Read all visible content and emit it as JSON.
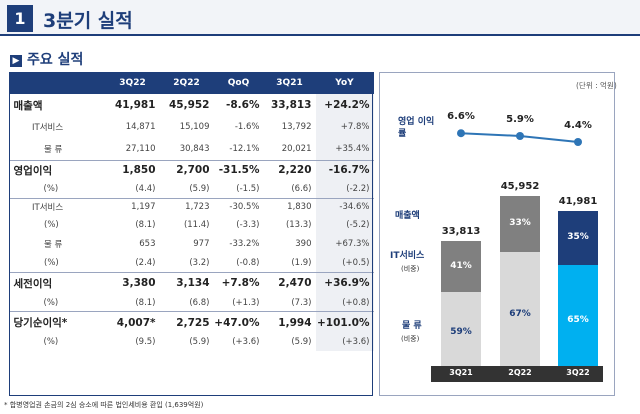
{
  "header": {
    "number": "1",
    "title": "3분기 실적"
  },
  "section": {
    "icon": "arrow-right-icon",
    "title": "주요 실적"
  },
  "table": {
    "columns": [
      "",
      "3Q22",
      "2Q22",
      "QoQ",
      "3Q21",
      "YoY"
    ],
    "rows": [
      {
        "label": "매출액",
        "values": [
          "41,981",
          "45,952",
          "-8.6%",
          "33,813",
          "+24.2%"
        ]
      },
      {
        "label": "IT서비스",
        "values": [
          "14,871",
          "15,109",
          "-1.6%",
          "13,792",
          "+7.8%"
        ]
      },
      {
        "label": "물 류",
        "values": [
          "27,110",
          "30,843",
          "-12.1%",
          "20,021",
          "+35.4%"
        ]
      },
      {
        "label": "영업이익",
        "values": [
          "1,850",
          "2,700",
          "-31.5%",
          "2,220",
          "-16.7%"
        ]
      },
      {
        "label": "(%)",
        "values": [
          "(4.4)",
          "(5.9)",
          "(-1.5)",
          "(6.6)",
          "(-2.2)"
        ]
      },
      {
        "label": "IT서비스",
        "values": [
          "1,197",
          "1,723",
          "-30.5%",
          "1,830",
          "-34.6%"
        ]
      },
      {
        "label": "(%)",
        "values": [
          "(8.1)",
          "(11.4)",
          "(-3.3)",
          "(13.3)",
          "(-5.2)"
        ]
      },
      {
        "label": "물 류",
        "values": [
          "653",
          "977",
          "-33.2%",
          "390",
          "+67.3%"
        ]
      },
      {
        "label": "(%)",
        "values": [
          "(2.4)",
          "(3.2)",
          "(-0.8)",
          "(1.9)",
          "(+0.5)"
        ]
      },
      {
        "label": "세전이익",
        "values": [
          "3,380",
          "3,134",
          "+7.8%",
          "2,470",
          "+36.9%"
        ]
      },
      {
        "label": "(%)",
        "values": [
          "(8.1)",
          "(6.8)",
          "(+1.3)",
          "(7.3)",
          "(+0.8)"
        ]
      },
      {
        "label": "당기순이익*",
        "values": [
          "4,007*",
          "2,725",
          "+47.0%",
          "1,994",
          "+101.0%"
        ]
      },
      {
        "label": "(%)",
        "values": [
          "(9.5)",
          "(5.9)",
          "(+3.6)",
          "(5.9)",
          "(+3.6)"
        ]
      }
    ]
  },
  "footnote": "* 합병영업권 손금의 2심 승소에 따른 법인세비용 환입 (1,639억원)",
  "chart_data": {
    "type": "bar",
    "unit": "(단위 : 억원)",
    "categories": [
      "3Q21",
      "2Q22",
      "3Q22"
    ],
    "totals": [
      "33,813",
      "45,952",
      "41,981"
    ],
    "total_values": [
      33813,
      45952,
      41981
    ],
    "series": [
      {
        "name": "물 류",
        "sublabel": "(비중)",
        "values": [
          59,
          67,
          65
        ],
        "labels": [
          "59%",
          "67%",
          "65%"
        ],
        "colors": [
          "#d9d9d9",
          "#d9d9d9",
          "#00b0f0"
        ]
      },
      {
        "name": "IT서비스",
        "sublabel": "(비중)",
        "values": [
          41,
          33,
          35
        ],
        "labels": [
          "41%",
          "33%",
          "35%"
        ],
        "colors": [
          "#808080",
          "#808080",
          "#1e3e7a"
        ]
      }
    ],
    "revenue_label": "매출액",
    "margin_line": {
      "name": "영업 이익률",
      "values": [
        6.6,
        5.9,
        4.4
      ],
      "labels": [
        "6.6%",
        "5.9%",
        "4.4%"
      ],
      "color": "#2e75b6"
    }
  }
}
